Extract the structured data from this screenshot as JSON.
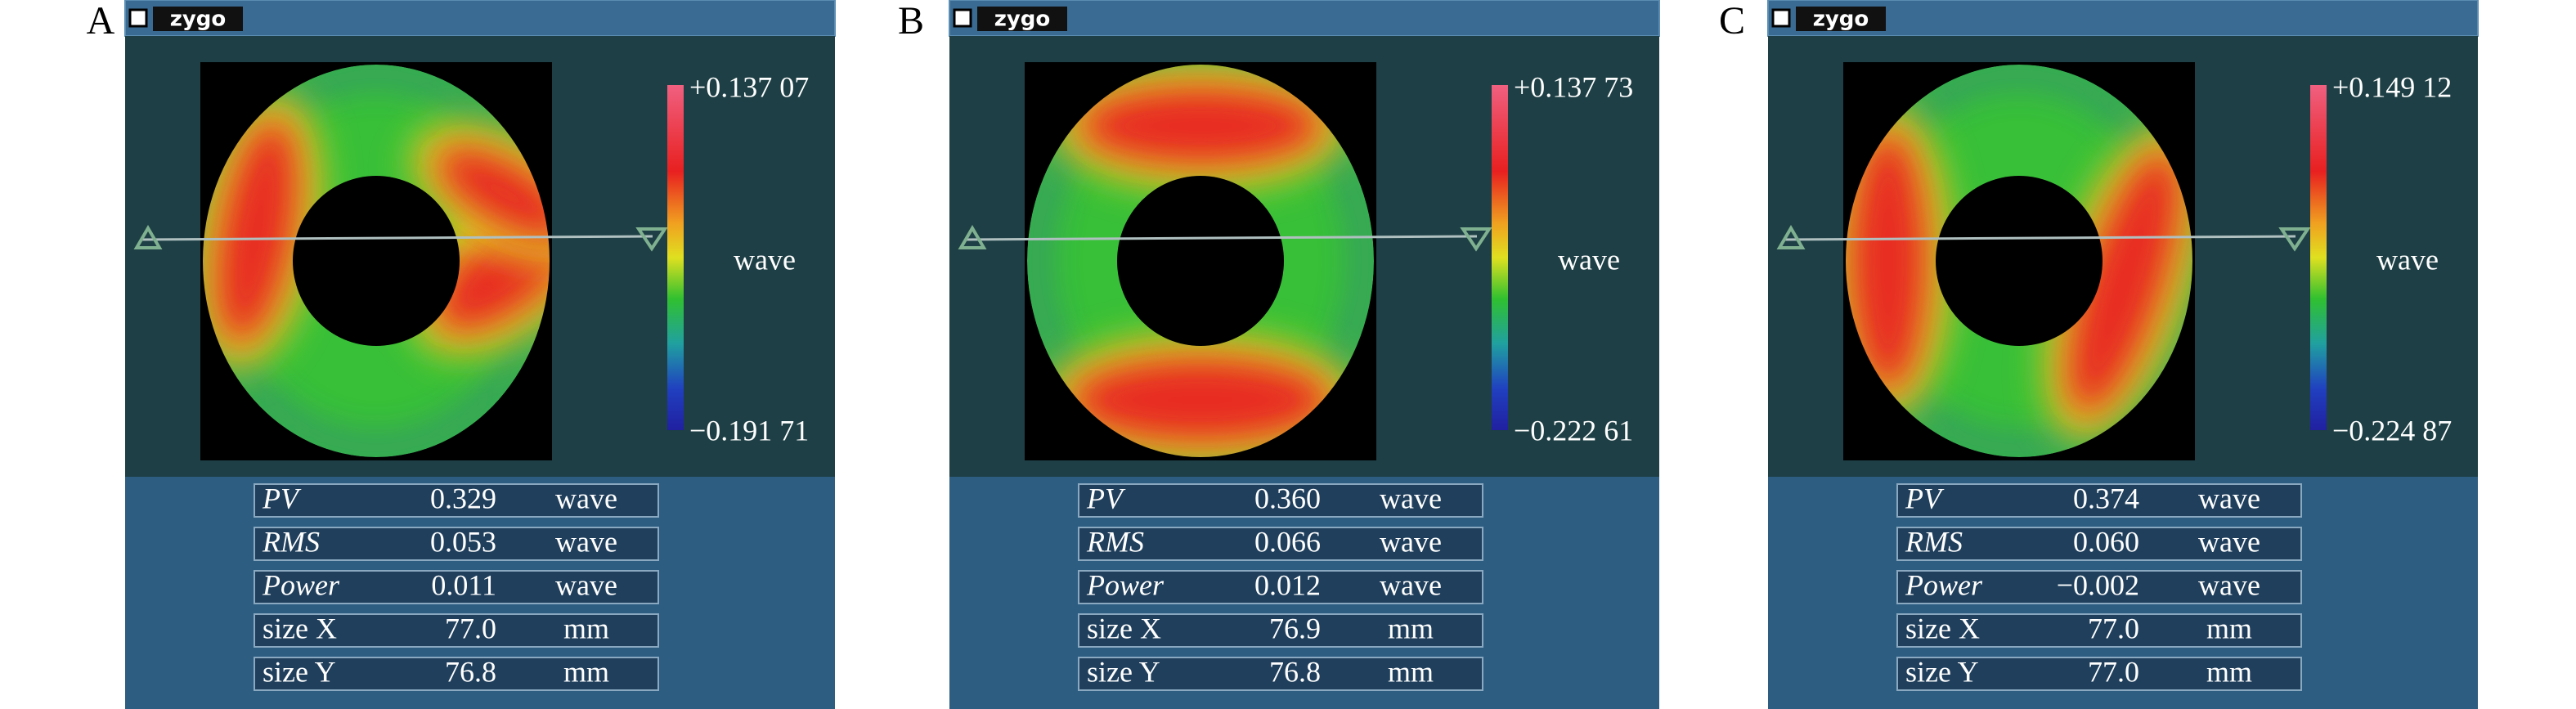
{
  "panels": [
    {
      "label": "A",
      "window_title": "zygo",
      "scale_max": "+0.137 07",
      "scale_min": "−0.191 71",
      "scale_unit": "wave",
      "stats": [
        [
          "PV",
          "0.329",
          "wave"
        ],
        [
          "RMS",
          "0.053",
          "wave"
        ],
        [
          "Power",
          "0.011",
          "wave"
        ],
        [
          "size X",
          "77.0",
          "mm"
        ],
        [
          "size Y",
          "76.8",
          "mm"
        ]
      ]
    },
    {
      "label": "B",
      "window_title": "zygo",
      "scale_max": "+0.137 73",
      "scale_min": "−0.222 61",
      "scale_unit": "wave",
      "stats": [
        [
          "PV",
          "0.360",
          "wave"
        ],
        [
          "RMS",
          "0.066",
          "wave"
        ],
        [
          "Power",
          "0.012",
          "wave"
        ],
        [
          "size X",
          "76.9",
          "mm"
        ],
        [
          "size Y",
          "76.8",
          "mm"
        ]
      ]
    },
    {
      "label": "C",
      "window_title": "zygo",
      "scale_max": "+0.149 12",
      "scale_min": "−0.224 87",
      "scale_unit": "wave",
      "stats": [
        [
          "PV",
          "0.374",
          "wave"
        ],
        [
          "RMS",
          "0.060",
          "wave"
        ],
        [
          "Power",
          "−0.002",
          "wave"
        ],
        [
          "size X",
          "77.0",
          "mm"
        ],
        [
          "size Y",
          "77.0",
          "mm"
        ]
      ]
    }
  ]
}
